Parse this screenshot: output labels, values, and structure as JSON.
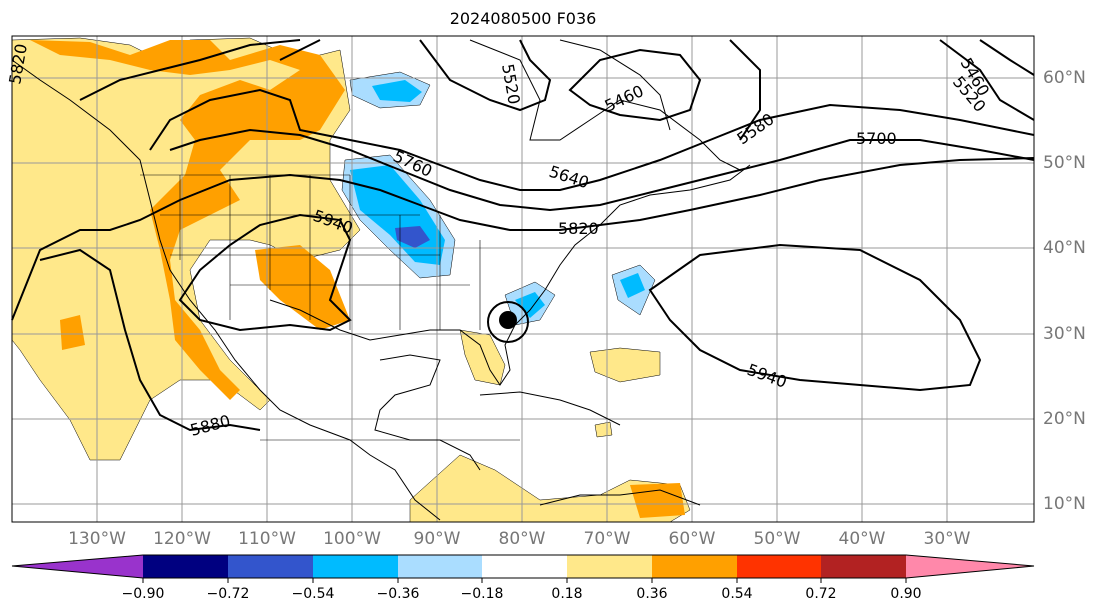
{
  "title": "2024080500 F036",
  "longitude_labels": [
    "130°W",
    "120°W",
    "110°W",
    "100°W",
    "90°W",
    "80°W",
    "70°W",
    "60°W",
    "50°W",
    "40°W",
    "30°W"
  ],
  "latitude_labels": [
    "60°N",
    "50°N",
    "40°N",
    "30°N",
    "20°N",
    "10°N"
  ],
  "contour_labels": [
    "5820",
    "5520",
    "5460",
    "5460",
    "5520",
    "5580",
    "5700",
    "5760",
    "5640",
    "5820",
    "5940",
    "5940",
    "5880"
  ],
  "colorbar": {
    "tick_labels": [
      "−0.90",
      "−0.72",
      "−0.54",
      "−0.36",
      "−0.18",
      "0.18",
      "0.36",
      "0.54",
      "0.72",
      "0.90"
    ],
    "colors": [
      "#9933cc",
      "#000080",
      "#3355cc",
      "#00bbff",
      "#aaddff",
      "#ffffff",
      "#ffe88a",
      "#ffa000",
      "#ff3300",
      "#b22222",
      "#ff88aa"
    ]
  },
  "colors": {
    "contour": "#000000",
    "grid": "#999999",
    "storm_marker": "#000000"
  }
}
